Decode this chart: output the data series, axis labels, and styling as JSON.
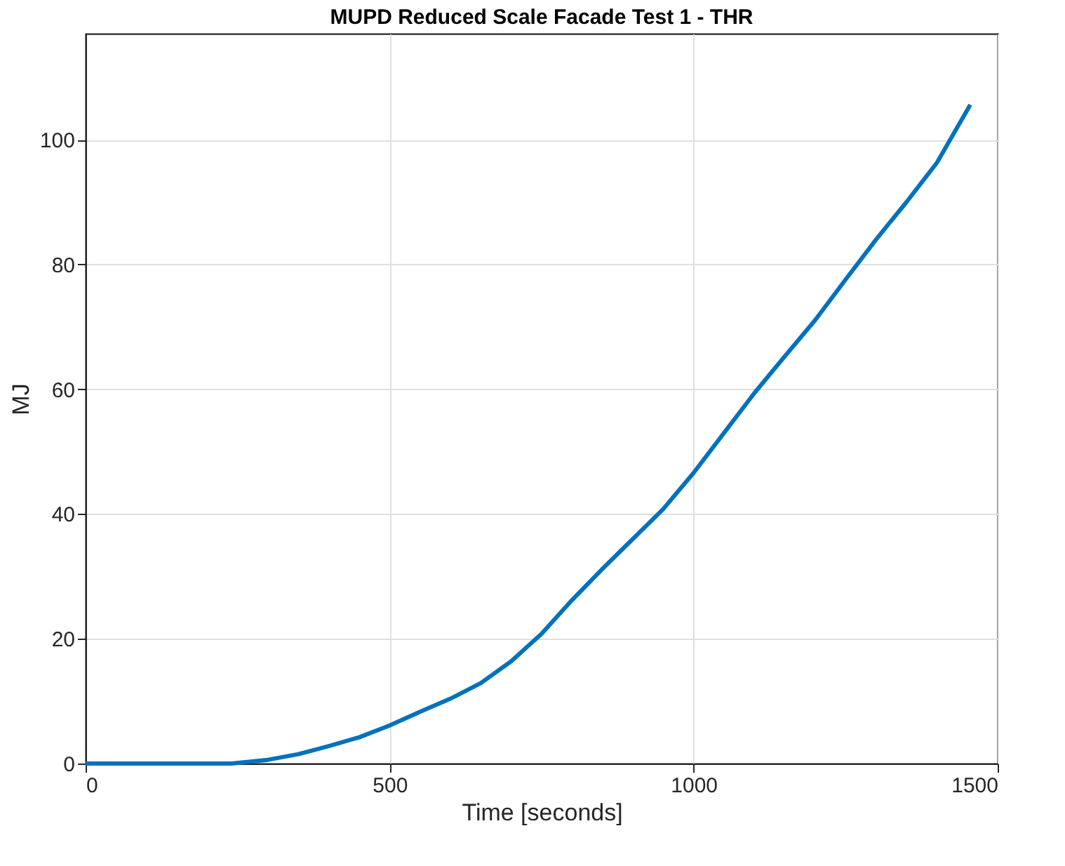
{
  "chart_data": {
    "type": "line",
    "title": "MUPD Reduced Scale Facade Test 1 - THR",
    "xlabel": "Time [seconds]",
    "ylabel": "MJ",
    "x": [
      0,
      100,
      200,
      240,
      300,
      350,
      400,
      450,
      500,
      550,
      600,
      650,
      700,
      750,
      800,
      850,
      900,
      950,
      1000,
      1050,
      1100,
      1150,
      1200,
      1250,
      1300,
      1350,
      1400,
      1455
    ],
    "series": [
      {
        "color": "#0072bd",
        "values": [
          0,
          0,
          0,
          0,
          0.6,
          1.5,
          2.8,
          4.2,
          6.1,
          8.3,
          10.4,
          12.9,
          16.4,
          20.8,
          26.2,
          31.2,
          36,
          40.8,
          46.6,
          53,
          59.4,
          65.3,
          71.1,
          77.6,
          84,
          90,
          96.3,
          105.6
        ]
      }
    ],
    "xlim": [
      0,
      1500
    ],
    "ylim": [
      0,
      117
    ],
    "xticks": [
      0,
      500,
      1000,
      1500
    ],
    "yticks": [
      0,
      20,
      40,
      60,
      80,
      100
    ],
    "grid": true,
    "line_style": "solid",
    "marker": "none"
  }
}
